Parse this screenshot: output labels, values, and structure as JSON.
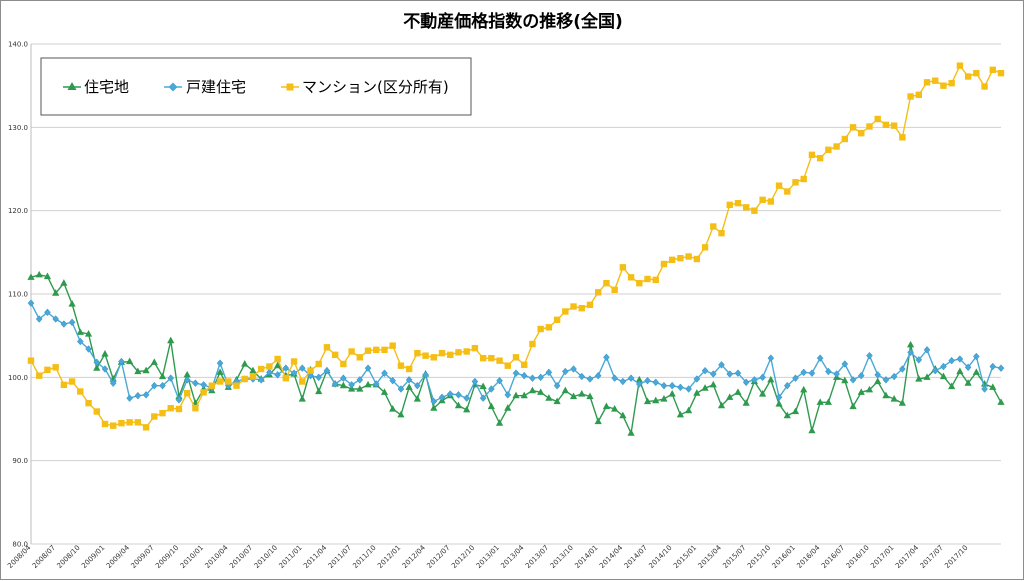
{
  "chart_data": {
    "type": "line",
    "title": "不動産価格指数の推移(全国)",
    "xlabel": "",
    "ylabel": "",
    "ylim": [
      80.0,
      140.0
    ],
    "yticks": [
      "80.0",
      "90.0",
      "100.0",
      "110.0",
      "120.0",
      "130.0",
      "140.0"
    ],
    "grid": true,
    "legend_position": "top-left",
    "x_tick_labels": [
      "2008/04",
      "2008/07",
      "2008/10",
      "2009/01",
      "2009/04",
      "2009/07",
      "2009/10",
      "2010/01",
      "2010/04",
      "2010/07",
      "2010/10",
      "2011/01",
      "2011/04",
      "2011/07",
      "2011/10",
      "2012/01",
      "2012/04",
      "2012/07",
      "2012/10",
      "2013/01",
      "2013/04",
      "2013/07",
      "2013/10",
      "2014/01",
      "2014/04",
      "2014/07",
      "2014/10",
      "2015/01",
      "2015/04",
      "2015/07",
      "2015/10",
      "2016/01",
      "2016/04",
      "2016/07",
      "2016/10",
      "2017/01",
      "2017/04",
      "2017/07",
      "2017/10"
    ],
    "series": [
      {
        "name": "住宅地",
        "color": "#2e9a4e",
        "marker": "triangle",
        "values": [
          112.0,
          112.3,
          112.1,
          110.1,
          111.3,
          108.8,
          105.4,
          105.2,
          101.1,
          102.8,
          99.8,
          101.8,
          101.9,
          100.7,
          100.8,
          101.8,
          100.1,
          104.4,
          97.7,
          100.3,
          96.9,
          98.6,
          98.4,
          100.6,
          98.8,
          99.7,
          101.6,
          100.8,
          99.8,
          100.3,
          101.4,
          100.2,
          100.4,
          97.4,
          100.9,
          98.3,
          100.8,
          99.2,
          99.0,
          98.6,
          98.6,
          99.1,
          99.1,
          98.2,
          96.2,
          95.5,
          98.8,
          97.4,
          100.4,
          96.3,
          97.2,
          97.8,
          96.6,
          96.1,
          99.1,
          98.9,
          96.5,
          94.5,
          96.3,
          97.8,
          97.8,
          98.4,
          98.2,
          97.5,
          97.1,
          98.4,
          97.7,
          98.0,
          97.7,
          94.7,
          96.5,
          96.2,
          95.4,
          93.3,
          99.7,
          97.1,
          97.2,
          97.4,
          98.0,
          95.5,
          96.0,
          98.1,
          98.7,
          99.1,
          96.6,
          97.6,
          98.2,
          96.9,
          99.5,
          98.0,
          99.7,
          96.8,
          95.4,
          95.9,
          98.5,
          93.6,
          97.0,
          97.0,
          100.0,
          99.6,
          96.5,
          98.2,
          98.5,
          99.5,
          97.8,
          97.4,
          96.9,
          103.9,
          99.8,
          100.0,
          101.0,
          100.1,
          98.9,
          100.7,
          99.3,
          100.6,
          99.2,
          98.8,
          97.0
        ]
      },
      {
        "name": "戸建住宅",
        "color": "#4aa8d8",
        "marker": "diamond",
        "values": [
          108.9,
          107.0,
          107.8,
          107.0,
          106.4,
          106.6,
          104.3,
          103.4,
          101.8,
          101.0,
          99.3,
          101.9,
          97.5,
          97.8,
          97.9,
          99.0,
          99.0,
          99.9,
          97.3,
          99.7,
          99.3,
          99.1,
          98.7,
          101.7,
          99.0,
          99.5,
          99.8,
          99.8,
          99.7,
          100.6,
          100.3,
          101.1,
          100.5,
          101.1,
          100.2,
          100.0,
          100.8,
          99.2,
          99.9,
          99.1,
          99.7,
          101.1,
          99.2,
          100.5,
          99.6,
          98.6,
          99.7,
          99.0,
          100.3,
          97.1,
          97.6,
          98.0,
          97.9,
          97.5,
          99.5,
          97.5,
          98.6,
          99.6,
          97.9,
          100.5,
          100.2,
          99.9,
          100.0,
          100.6,
          99.0,
          100.7,
          101.0,
          100.1,
          99.8,
          100.2,
          102.4,
          99.9,
          99.5,
          99.9,
          99.2,
          99.6,
          99.4,
          99.0,
          99.0,
          98.8,
          98.6,
          99.8,
          100.8,
          100.4,
          101.5,
          100.4,
          100.5,
          99.4,
          99.7,
          100.0,
          102.3,
          97.6,
          99.0,
          99.9,
          100.6,
          100.5,
          102.3,
          100.7,
          100.4,
          101.6,
          99.7,
          100.2,
          102.6,
          100.3,
          99.7,
          100.1,
          101.0,
          103.0,
          102.1,
          103.3,
          100.8,
          101.3,
          102.0,
          102.2,
          101.2,
          102.5,
          98.6,
          101.3,
          101.1
        ]
      },
      {
        "name": "マンション(区分所有)",
        "color": "#f5be14",
        "marker": "square",
        "values": [
          102.0,
          100.2,
          100.9,
          101.2,
          99.1,
          99.5,
          98.3,
          96.9,
          95.9,
          94.4,
          94.2,
          94.5,
          94.6,
          94.6,
          94.0,
          95.3,
          95.7,
          96.3,
          96.2,
          98.1,
          96.3,
          98.2,
          99.0,
          99.5,
          99.5,
          99.0,
          99.8,
          100.1,
          101.0,
          101.3,
          102.2,
          99.9,
          101.9,
          99.5,
          100.8,
          101.6,
          103.6,
          102.7,
          101.6,
          103.1,
          102.4,
          103.2,
          103.3,
          103.3,
          103.8,
          101.4,
          101.0,
          102.9,
          102.6,
          102.4,
          102.9,
          102.7,
          103.0,
          103.1,
          103.5,
          102.3,
          102.3,
          102.0,
          101.4,
          102.4,
          101.5,
          104.0,
          105.8,
          106.0,
          106.9,
          107.9,
          108.5,
          108.3,
          108.7,
          110.2,
          111.3,
          110.5,
          113.2,
          112.0,
          111.3,
          111.8,
          111.7,
          113.6,
          114.1,
          114.3,
          114.5,
          114.2,
          115.6,
          118.1,
          117.3,
          120.7,
          120.9,
          120.4,
          120.0,
          121.3,
          121.1,
          123.0,
          122.3,
          123.4,
          123.8,
          126.7,
          126.3,
          127.3,
          127.7,
          128.6,
          130.0,
          129.3,
          130.1,
          131.0,
          130.3,
          130.2,
          128.8,
          133.7,
          133.9,
          135.4,
          135.6,
          135.0,
          135.3,
          137.4,
          136.1,
          136.5,
          134.9,
          136.9,
          136.5
        ]
      }
    ]
  }
}
